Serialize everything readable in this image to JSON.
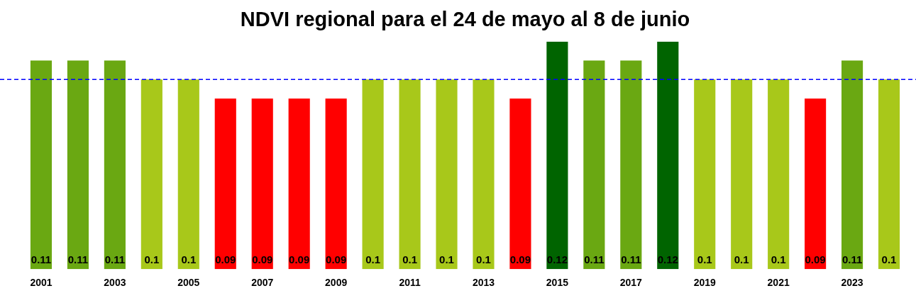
{
  "chart_data": {
    "type": "bar",
    "title": "NDVI regional para el 24 de mayo al 8 de junio",
    "categories": [
      "2001",
      null,
      "2003",
      null,
      "2005",
      null,
      "2007",
      null,
      "2009",
      null,
      "2011",
      null,
      "2013",
      null,
      "2015",
      null,
      "2017",
      null,
      "2019",
      null,
      "2021",
      null,
      "2023",
      null
    ],
    "values": [
      0.11,
      0.11,
      0.11,
      0.1,
      0.1,
      0.09,
      0.09,
      0.09,
      0.09,
      0.1,
      0.1,
      0.1,
      0.1,
      0.09,
      0.12,
      0.11,
      0.11,
      0.12,
      0.1,
      0.1,
      0.1,
      0.09,
      0.11,
      0.1
    ],
    "colors": [
      "#6aa812",
      "#6aa812",
      "#6aa812",
      "#a8c81a",
      "#a8c81a",
      "#ff0000",
      "#ff0000",
      "#ff0000",
      "#ff0000",
      "#a8c81a",
      "#a8c81a",
      "#a8c81a",
      "#a8c81a",
      "#ff0000",
      "#006400",
      "#6aa812",
      "#6aa812",
      "#006400",
      "#a8c81a",
      "#a8c81a",
      "#a8c81a",
      "#ff0000",
      "#6aa812",
      "#a8c81a"
    ],
    "tick_labels": "x",
    "data_labels": true,
    "grid": false,
    "legend": false,
    "ref_lines": [
      {
        "axis": "y",
        "value": 0.1,
        "color": "#0000ff",
        "line_style": "dashed"
      }
    ]
  }
}
